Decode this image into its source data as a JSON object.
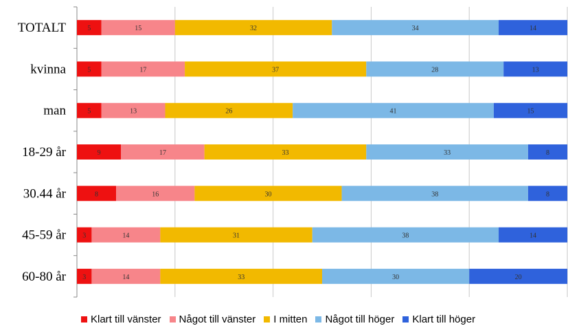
{
  "chart_data": {
    "type": "bar",
    "orientation": "horizontal",
    "stacked": true,
    "title": "",
    "xlabel": "",
    "ylabel": "",
    "xlim": [
      0,
      100
    ],
    "grid": true,
    "legend_position": "bottom",
    "categories": [
      "TOTALT",
      "kvinna",
      "man",
      "18-29 år",
      "30.44 år",
      "45-59 år",
      "60-80 år"
    ],
    "series": [
      {
        "name": "Klart till vänster",
        "color": "#ee1111",
        "values": [
          5,
          5,
          5,
          9,
          8,
          3,
          3
        ]
      },
      {
        "name": "Något till vänster",
        "color": "#f7858a",
        "values": [
          15,
          17,
          13,
          17,
          16,
          14,
          14
        ]
      },
      {
        "name": "I mitten",
        "color": "#f2b900",
        "values": [
          32,
          37,
          26,
          33,
          30,
          31,
          33
        ]
      },
      {
        "name": "Något till höger",
        "color": "#7cb8e6",
        "values": [
          34,
          28,
          41,
          33,
          38,
          38,
          30
        ]
      },
      {
        "name": "Klart till höger",
        "color": "#2f62dc",
        "values": [
          14,
          13,
          15,
          8,
          8,
          14,
          20
        ]
      }
    ]
  }
}
